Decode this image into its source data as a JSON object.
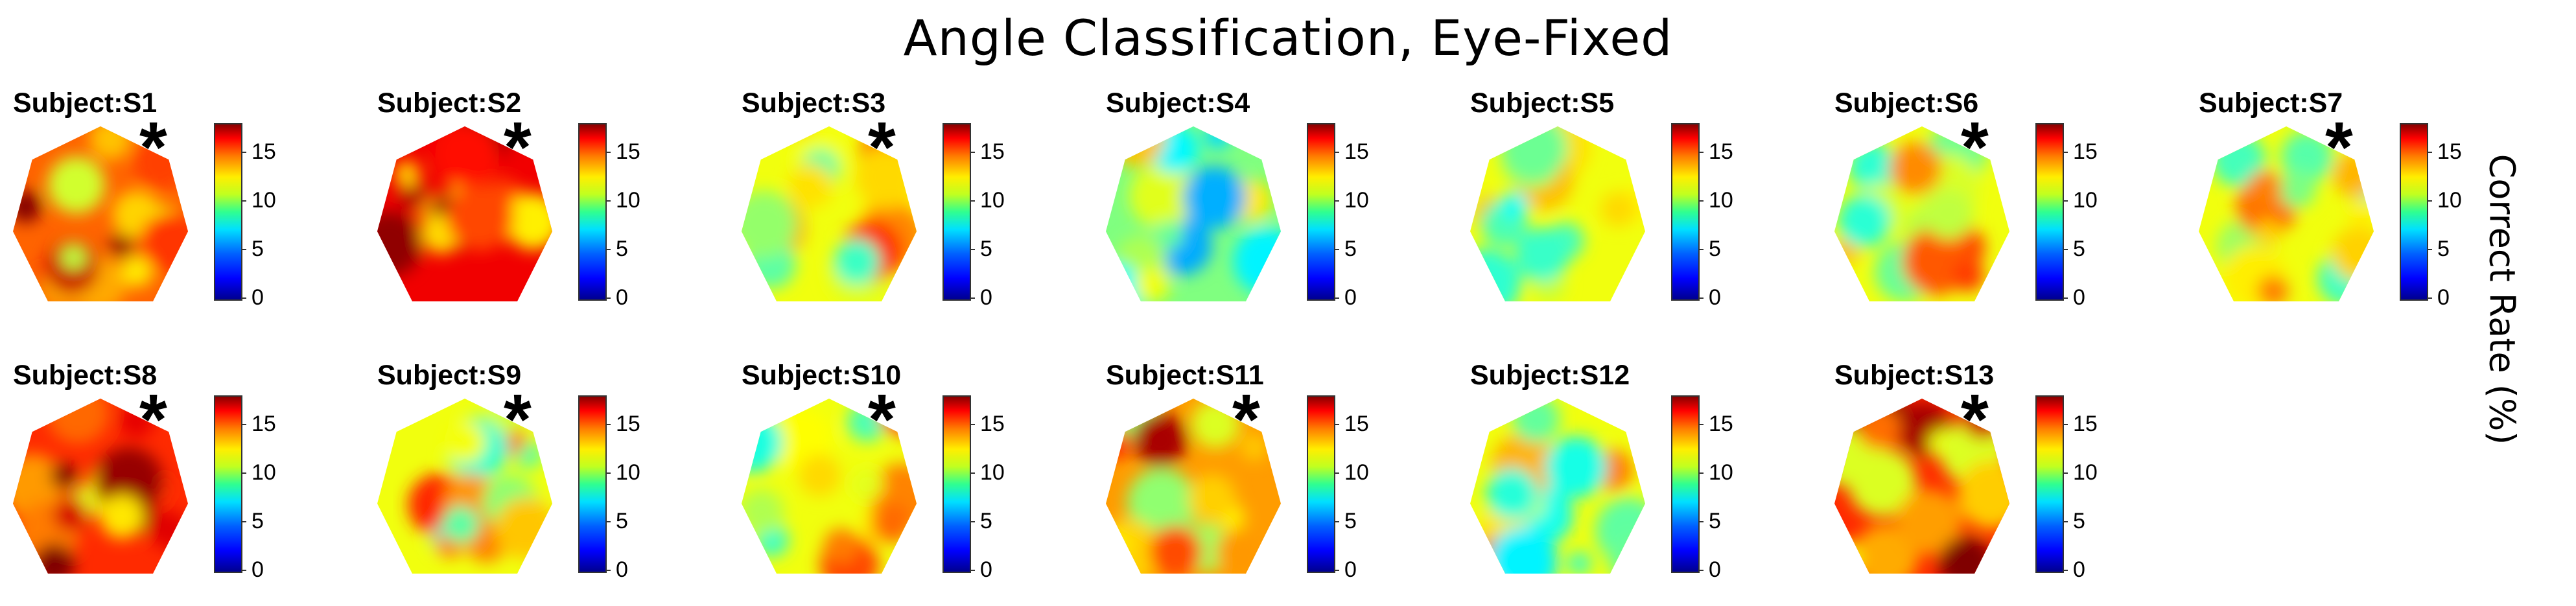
{
  "title": "Angle Classification, Eye-Fixed",
  "colorbar_label": "Correct Rate (%)",
  "colorbar_ticks": [
    "0",
    "5",
    "10",
    "15"
  ],
  "chart_data": {
    "type": "heatmap",
    "title": "Angle Classification, Eye-Fixed",
    "colorbar": {
      "label": "Correct Rate (%)",
      "range": [
        0,
        18
      ],
      "ticks": [
        0,
        5,
        10,
        15
      ],
      "colormap": "jet"
    },
    "panels": [
      {
        "label": "Subject:S1",
        "significant": true,
        "typical_value": 14
      },
      {
        "label": "Subject:S2",
        "significant": true,
        "typical_value": 16
      },
      {
        "label": "Subject:S3",
        "significant": true,
        "typical_value": 11
      },
      {
        "label": "Subject:S4",
        "significant": false,
        "typical_value": 9
      },
      {
        "label": "Subject:S5",
        "significant": false,
        "typical_value": 11
      },
      {
        "label": "Subject:S6",
        "significant": true,
        "typical_value": 11
      },
      {
        "label": "Subject:S7",
        "significant": true,
        "typical_value": 11
      },
      {
        "label": "Subject:S8",
        "significant": true,
        "typical_value": 15
      },
      {
        "label": "Subject:S9",
        "significant": true,
        "typical_value": 11
      },
      {
        "label": "Subject:S10",
        "significant": true,
        "typical_value": 11
      },
      {
        "label": "Subject:S11",
        "significant": true,
        "typical_value": 13
      },
      {
        "label": "Subject:S12",
        "significant": false,
        "typical_value": 11
      },
      {
        "label": "Subject:S13",
        "significant": true,
        "typical_value": 15
      }
    ]
  },
  "star_symbol": "*"
}
